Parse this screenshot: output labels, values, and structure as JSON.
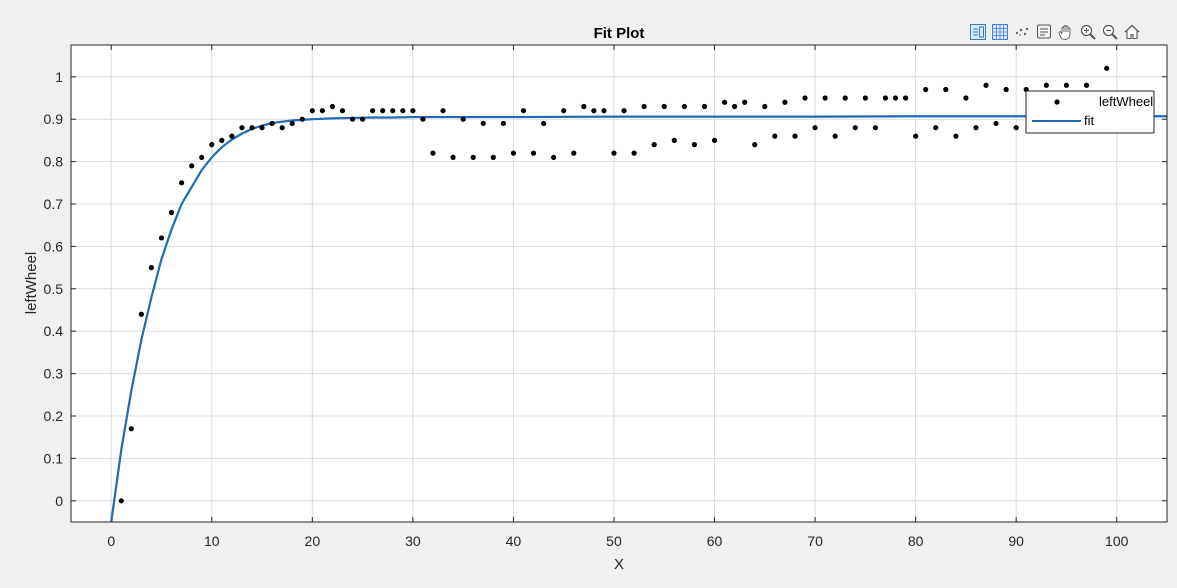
{
  "toolbar": {
    "icons": [
      "legend-icon",
      "grid-icon",
      "brush-icon",
      "datatip-icon",
      "pan-icon",
      "zoom-in-icon",
      "zoom-out-icon",
      "home-icon"
    ]
  },
  "colors": {
    "fit_line": "#1f6bb5",
    "points": "#000000",
    "grid": "#dcdcdc",
    "background": "#f0f0f0"
  },
  "chart_data": {
    "type": "scatter",
    "title": "Fit Plot",
    "xlabel": "X",
    "ylabel": "leftWheel",
    "xlim": [
      -4,
      105
    ],
    "ylim": [
      -0.05,
      1.075
    ],
    "xticks": [
      "0",
      "10",
      "20",
      "30",
      "40",
      "50",
      "60",
      "70",
      "80",
      "90",
      "100"
    ],
    "yticks": [
      "0",
      "0.1",
      "0.2",
      "0.3",
      "0.4",
      "0.5",
      "0.6",
      "0.7",
      "0.8",
      "0.9",
      "1"
    ],
    "grid": true,
    "legend_position": "top-right",
    "series": [
      {
        "name": "leftWheel",
        "kind": "points",
        "x": [
          1,
          2,
          3,
          4,
          5,
          6,
          7,
          8,
          9,
          10,
          11,
          12,
          13,
          14,
          15,
          16,
          17,
          18,
          19,
          20,
          21,
          22,
          23,
          24,
          25,
          26,
          27,
          28,
          29,
          30,
          31,
          32,
          33,
          34,
          35,
          36,
          37,
          38,
          39,
          40,
          41,
          42,
          43,
          44,
          45,
          46,
          47,
          48,
          49,
          50,
          51,
          52,
          53,
          54,
          55,
          56,
          57,
          58,
          59,
          60,
          61,
          62,
          63,
          64,
          65,
          66,
          67,
          68,
          69,
          70,
          71,
          72,
          73,
          74,
          75,
          76,
          77,
          78,
          79,
          80,
          81,
          82,
          83,
          84,
          85,
          86,
          87,
          88,
          89,
          90,
          91,
          93,
          95,
          97,
          99
        ],
        "y": [
          0,
          0.17,
          0.44,
          0.55,
          0.62,
          0.68,
          0.75,
          0.79,
          0.81,
          0.84,
          0.85,
          0.86,
          0.88,
          0.88,
          0.88,
          0.89,
          0.88,
          0.89,
          0.9,
          0.92,
          0.92,
          0.93,
          0.92,
          0.9,
          0.9,
          0.92,
          0.92,
          0.92,
          0.92,
          0.92,
          0.9,
          0.82,
          0.92,
          0.81,
          0.9,
          0.81,
          0.89,
          0.81,
          0.89,
          0.82,
          0.92,
          0.82,
          0.89,
          0.81,
          0.92,
          0.82,
          0.93,
          0.92,
          0.92,
          0.82,
          0.92,
          0.82,
          0.93,
          0.84,
          0.93,
          0.85,
          0.93,
          0.84,
          0.93,
          0.85,
          0.94,
          0.93,
          0.94,
          0.84,
          0.93,
          0.86,
          0.94,
          0.86,
          0.95,
          0.88,
          0.95,
          0.86,
          0.95,
          0.88,
          0.95,
          0.88,
          0.95,
          0.95,
          0.95,
          0.86,
          0.97,
          0.88,
          0.97,
          0.86,
          0.95,
          0.88,
          0.98,
          0.89,
          0.97,
          0.88,
          0.97,
          0.98,
          0.98,
          0.98,
          1.02
        ]
      },
      {
        "name": "fit",
        "kind": "line",
        "x": [
          0,
          1,
          2,
          3,
          4,
          5,
          6,
          7,
          8,
          9,
          10,
          11,
          12,
          13,
          14,
          15,
          16,
          18,
          20,
          22,
          24,
          26,
          28,
          30,
          35,
          40,
          50,
          60,
          70,
          80,
          90,
          100,
          105
        ],
        "y": [
          -0.05,
          0.12,
          0.26,
          0.38,
          0.48,
          0.57,
          0.64,
          0.7,
          0.74,
          0.78,
          0.81,
          0.834,
          0.852,
          0.866,
          0.877,
          0.885,
          0.891,
          0.897,
          0.9,
          0.902,
          0.903,
          0.904,
          0.904,
          0.905,
          0.905,
          0.905,
          0.906,
          0.906,
          0.906,
          0.907,
          0.907,
          0.907,
          0.907
        ]
      }
    ]
  }
}
